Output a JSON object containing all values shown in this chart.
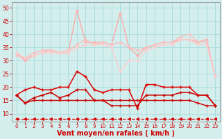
{
  "background_color": "#d4eeee",
  "grid_color": "#aadddd",
  "xlabel": "Vent moyen/en rafales ( km/h )",
  "xlabel_color": "#cc0000",
  "xlabel_fontsize": 7,
  "tick_color": "#cc0000",
  "ylim": [
    7,
    52
  ],
  "xlim": [
    -0.5,
    23.5
  ],
  "yticks": [
    10,
    15,
    20,
    25,
    30,
    35,
    40,
    45,
    50
  ],
  "xticks": [
    0,
    1,
    2,
    3,
    4,
    5,
    6,
    7,
    8,
    9,
    10,
    11,
    12,
    13,
    14,
    15,
    16,
    17,
    18,
    19,
    20,
    21,
    22,
    23
  ],
  "series": [
    {
      "x": [
        0,
        1,
        2,
        3,
        4,
        5,
        6,
        7,
        8,
        9,
        10,
        11,
        12,
        13,
        14,
        15,
        16,
        17,
        18,
        19,
        20,
        21,
        22,
        23
      ],
      "y": [
        33,
        30,
        32,
        33,
        34,
        33,
        33,
        49,
        37,
        37,
        37,
        36,
        48,
        35,
        32,
        35,
        36,
        37,
        37,
        38,
        38,
        37,
        38,
        24
      ],
      "color": "#ffaaaa",
      "lw": 1.0,
      "marker": "+",
      "ms": 3.5,
      "zorder": 2
    },
    {
      "x": [
        0,
        1,
        2,
        3,
        4,
        5,
        6,
        7,
        8,
        9,
        10,
        11,
        12,
        13,
        14,
        15,
        16,
        17,
        18,
        19,
        20,
        21,
        22,
        23
      ],
      "y": [
        32,
        31,
        33,
        34,
        34,
        33,
        34,
        36,
        38,
        36,
        37,
        36,
        37,
        35,
        34,
        35,
        36,
        37,
        37,
        39,
        40,
        37,
        37,
        24
      ],
      "color": "#ffbbbb",
      "lw": 1.0,
      "marker": "+",
      "ms": 3.5,
      "zorder": 2
    },
    {
      "x": [
        0,
        1,
        2,
        3,
        4,
        5,
        6,
        7,
        8,
        9,
        10,
        11,
        12,
        13,
        14,
        15,
        16,
        17,
        18,
        19,
        20,
        21,
        22,
        23
      ],
      "y": [
        33,
        31,
        32,
        33,
        33,
        33,
        33,
        35,
        36,
        36,
        36,
        35,
        26,
        30,
        30,
        34,
        35,
        36,
        36,
        38,
        38,
        36,
        36,
        24
      ],
      "color": "#ffcccc",
      "lw": 1.0,
      "marker": "+",
      "ms": 3.0,
      "zorder": 2
    },
    {
      "x": [
        0,
        1,
        2,
        3,
        4,
        5,
        6,
        7,
        8,
        9,
        10,
        11,
        12,
        13,
        14,
        15,
        16,
        17,
        18,
        19,
        20,
        21,
        22,
        23
      ],
      "y": [
        17,
        19,
        20,
        19,
        19,
        20,
        20,
        26,
        24,
        19,
        18,
        19,
        19,
        19,
        12,
        21,
        21,
        20,
        20,
        20,
        20,
        17,
        17,
        13
      ],
      "color": "#dd0000",
      "lw": 1.1,
      "marker": "+",
      "ms": 3.5,
      "zorder": 3
    },
    {
      "x": [
        0,
        1,
        2,
        3,
        4,
        5,
        6,
        7,
        8,
        9,
        10,
        11,
        12,
        13,
        14,
        15,
        16,
        17,
        18,
        19,
        20,
        21,
        22,
        23
      ],
      "y": [
        17,
        14,
        16,
        17,
        18,
        16,
        17,
        19,
        19,
        15,
        15,
        13,
        13,
        13,
        13,
        17,
        17,
        17,
        17,
        18,
        18,
        17,
        17,
        13
      ],
      "color": "#cc0000",
      "lw": 1.1,
      "marker": "+",
      "ms": 3.5,
      "zorder": 3
    },
    {
      "x": [
        0,
        1,
        2,
        3,
        4,
        5,
        6,
        7,
        8,
        9,
        10,
        11,
        12,
        13,
        14,
        15,
        16,
        17,
        18,
        19,
        20,
        21,
        22,
        23
      ],
      "y": [
        17,
        14,
        15,
        15,
        15,
        15,
        15,
        15,
        15,
        15,
        15,
        15,
        15,
        15,
        15,
        15,
        15,
        15,
        15,
        15,
        15,
        14,
        13,
        13
      ],
      "color": "#cc0000",
      "lw": 1.0,
      "marker": "+",
      "ms": 3.0,
      "zorder": 3
    },
    {
      "x": [
        0,
        1,
        2,
        3,
        4,
        5,
        6,
        7,
        8,
        9,
        10,
        11,
        12,
        13,
        14,
        15,
        16,
        17,
        18,
        19,
        20,
        21,
        22,
        23
      ],
      "y": [
        8,
        8,
        8,
        8,
        8,
        8,
        8,
        8,
        8,
        8,
        8,
        8,
        8,
        8,
        8,
        8,
        8,
        8,
        8,
        8,
        8,
        8,
        8,
        8
      ],
      "color": "#dd0000",
      "lw": 0.9,
      "marker": "<",
      "ms": 2.5,
      "linestyle": "--",
      "zorder": 3
    }
  ]
}
